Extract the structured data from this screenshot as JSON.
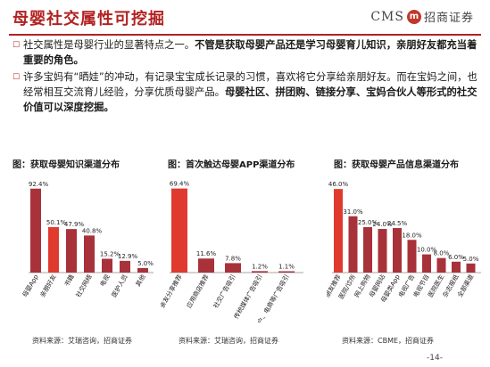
{
  "header": {
    "title": "母婴社交属性可挖掘",
    "brand_text": "CMS",
    "brand_logo": "m",
    "brand_name": "招商证券"
  },
  "bullets": [
    {
      "plain": "社交属性是母婴行业的显著特点之一。",
      "bold": "不管是获取母婴产品还是学习母婴育儿知识，亲朋好友都充当着重要的角色。"
    },
    {
      "plain": "许多宝妈有“晒娃”的冲动，有记录宝宝成长记录的习惯，喜欢将它分享给亲朋好友。而在宝妈之间，也经常相互交流育儿经验，分享优质母婴产品。",
      "bold": "母婴社区、拼团购、链接分享、宝妈合伙人等形式的社交价值可以深度挖掘。"
    }
  ],
  "chart_data": [
    {
      "type": "bar",
      "title": "图：获取母婴知识渠道分布",
      "categories": [
        "母婴App",
        "亲朋好友",
        "书籍",
        "社交网络",
        "电视",
        "医护人员",
        "其他"
      ],
      "values": [
        92.4,
        50.1,
        47.9,
        40.8,
        15.2,
        12.9,
        5.0
      ],
      "value_labels": [
        "92.4%",
        "50.1%",
        "47.9%",
        "40.8%",
        "15.2%",
        "12.9%",
        "5.0%"
      ],
      "highlight_index": 1,
      "ylim": [
        0,
        100
      ],
      "grid": false,
      "source": "资料来源：艾瑞咨询，招商证券"
    },
    {
      "type": "bar",
      "title": "图：首次触达母婴APP渠道分布",
      "categories": [
        "亲友分享推荐",
        "应用商店推荐",
        "社交广告吸引",
        "传统媒体广告吸引",
        "门户、电商等广告吸引"
      ],
      "values": [
        69.4,
        11.6,
        7.8,
        1.2,
        1.1
      ],
      "value_labels": [
        "69.4%",
        "11.6%",
        "7.8%",
        "1.2%",
        "1.1%"
      ],
      "highlight_index": 0,
      "ylim": [
        0,
        75
      ],
      "grid": false,
      "source": "资料来源：艾瑞咨询，招商证券"
    },
    {
      "type": "bar",
      "title": "图：获取母婴产品信息渠道分布",
      "categories": [
        "朋友推荐",
        "医院/诊所",
        "网上购物",
        "母婴网站",
        "母婴类App",
        "电视广告",
        "电视节目",
        "医院医生",
        "杂志报纸",
        "全部渠道"
      ],
      "values": [
        46.0,
        31.0,
        25.0,
        24.0,
        24.5,
        18.0,
        10.0,
        8.0,
        6.0,
        5.0
      ],
      "value_labels": [
        "46.0%",
        "31.0%",
        "25.0%",
        "24.0%",
        "24.5%",
        "18.0%",
        "10.0%",
        "8.0%",
        "6.0%",
        "5.0%"
      ],
      "highlight_index": 0,
      "ylim": [
        0,
        50
      ],
      "grid": false,
      "source": "资料来源：CBME，招商证券"
    }
  ],
  "colors": {
    "highlight": "#e03a2f",
    "bar": "#a8323a",
    "accent": "#b22222"
  },
  "footer": {
    "page": "-14-"
  }
}
